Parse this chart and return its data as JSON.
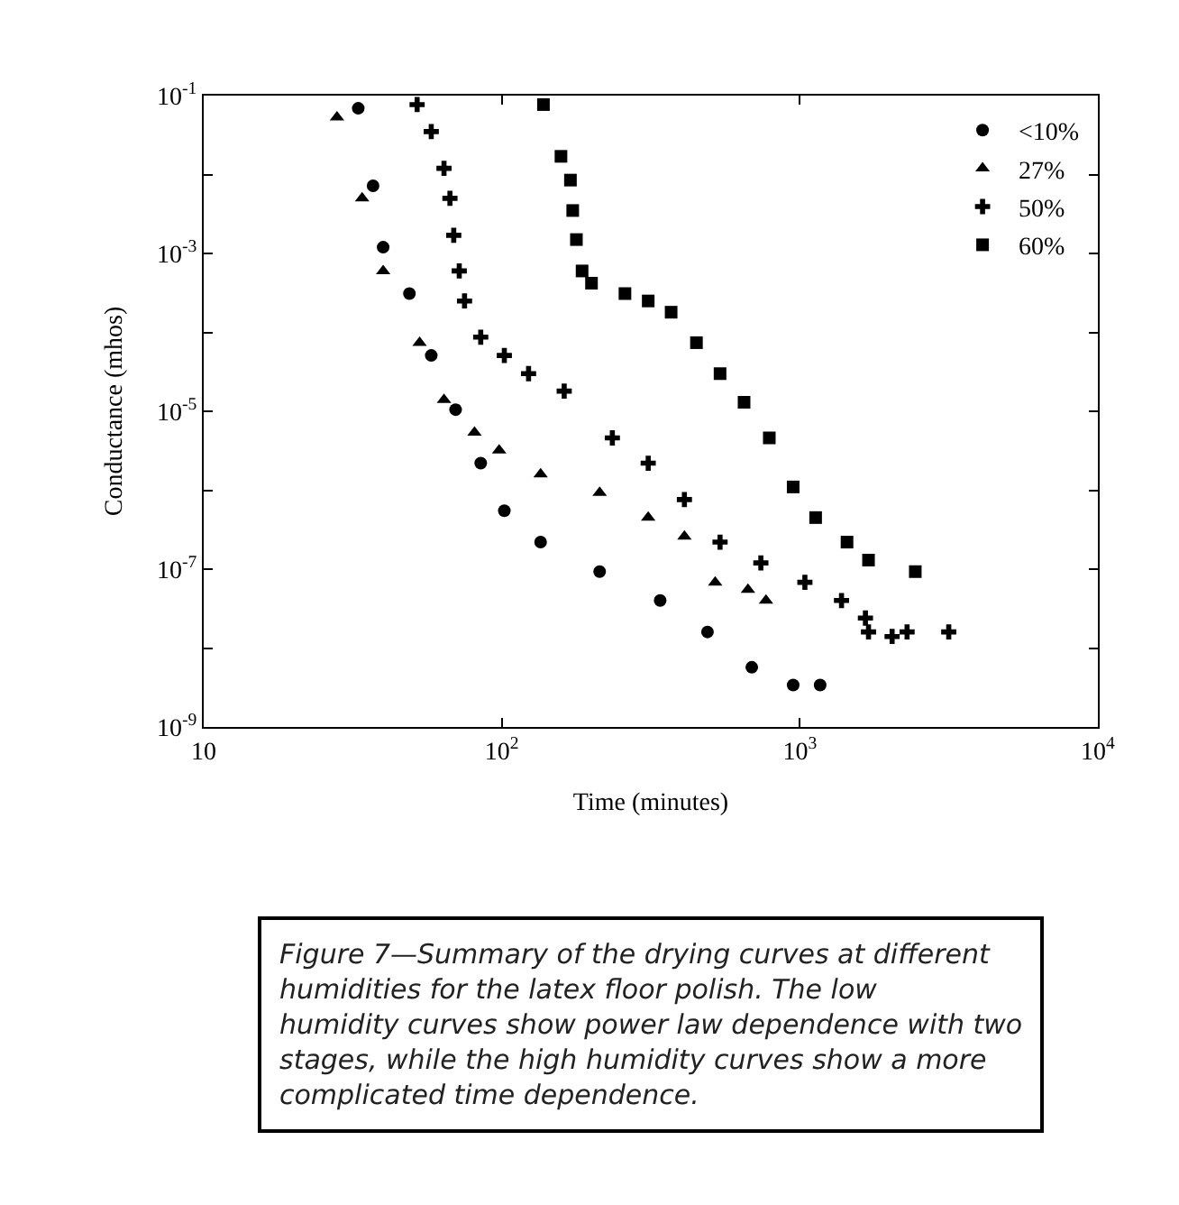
{
  "chart_data": {
    "type": "scatter",
    "xlabel": "Time (minutes)",
    "ylabel": "Conductance (mhos)",
    "log": "xy",
    "legend": "top right",
    "xlim": [
      10,
      10000
    ],
    "ylim": [
      1e-09,
      0.1
    ],
    "xticks": [
      {
        "value": 10,
        "label": "10"
      },
      {
        "value": 100,
        "label": "10$^{2}$"
      },
      {
        "value": 1000,
        "label": "10$^{3}$"
      },
      {
        "value": 10000,
        "label": "10$^{4}$"
      }
    ],
    "yticks": [
      {
        "value": 0.1,
        "label": "10$^{-1}$"
      },
      {
        "value": 0.01,
        "label": null
      },
      {
        "value": 0.001,
        "label": "10$^{-3}$"
      },
      {
        "value": 0.0001,
        "label": null
      },
      {
        "value": 1e-05,
        "label": "10$^{-5}$"
      },
      {
        "value": 1e-06,
        "label": null
      },
      {
        "value": 1e-07,
        "label": "10$^{-7}$"
      },
      {
        "value": 1e-08,
        "label": null
      },
      {
        "value": 1e-09,
        "label": "10$^{-9}$"
      }
    ],
    "series": [
      {
        "name": "<10%",
        "color": "#000000",
        "marker": "circle",
        "x": [
          33,
          37,
          40,
          49,
          58,
          70,
          85,
          102,
          135,
          213,
          340,
          490,
          690,
          950,
          1170
        ],
        "values": [
          0.069,
          0.0072,
          0.0012,
          0.00031,
          5.1e-05,
          1.05e-05,
          2.2e-06,
          5.5e-07,
          2.2e-07,
          9.3e-08,
          4e-08,
          1.6e-08,
          5.7e-09,
          3.4e-09,
          3.4e-09
        ]
      },
      {
        "name": "27%",
        "color": "#000000",
        "marker": "triangle",
        "x": [
          28,
          34,
          40,
          53,
          64,
          81,
          98,
          135,
          213,
          310,
          410,
          520,
          670,
          770
        ],
        "values": [
          0.053,
          0.005,
          0.0006,
          7.4e-05,
          1.4e-05,
          5.4e-06,
          3.2e-06,
          1.6e-06,
          9.3e-07,
          4.5e-07,
          2.6e-07,
          6.8e-08,
          5.5e-08,
          4e-08
        ]
      },
      {
        "name": "50%",
        "color": "#000000",
        "marker": "cross",
        "x": [
          52,
          58,
          64,
          67,
          69,
          72,
          75,
          85,
          102,
          123,
          162,
          235,
          310,
          410,
          540,
          740,
          1040,
          1380,
          1660,
          1700,
          2040,
          2290,
          3160
        ],
        "values": [
          0.077,
          0.035,
          0.012,
          0.005,
          0.0017,
          0.0006,
          0.00025,
          8.7e-05,
          5.1e-05,
          3e-05,
          1.8e-05,
          4.6e-06,
          2.2e-06,
          7.6e-07,
          2.2e-07,
          1.2e-07,
          6.8e-08,
          4e-08,
          2.4e-08,
          1.6e-08,
          1.4e-08,
          1.6e-08,
          1.6e-08
        ]
      },
      {
        "name": "60%",
        "color": "#000000",
        "marker": "square",
        "x": [
          138,
          158,
          170,
          173,
          178,
          186,
          200,
          259,
          310,
          370,
          450,
          540,
          650,
          790,
          950,
          1130,
          1440,
          1700,
          2440
        ],
        "values": [
          0.077,
          0.017,
          0.0085,
          0.0035,
          0.0015,
          0.0006,
          0.00042,
          0.00031,
          0.00025,
          0.00018,
          7.4e-05,
          3e-05,
          1.3e-05,
          4.6e-06,
          1.1e-06,
          4.5e-07,
          2.2e-07,
          1.3e-07,
          9.3e-08
        ]
      }
    ],
    "annotations": [
      "Figure 7—Summary of the drying curves at different humidities for the latex floor polish. The low humidity curves show power law dependence with two stages, while the high humidity curves show a more complicated time dependence."
    ]
  }
}
